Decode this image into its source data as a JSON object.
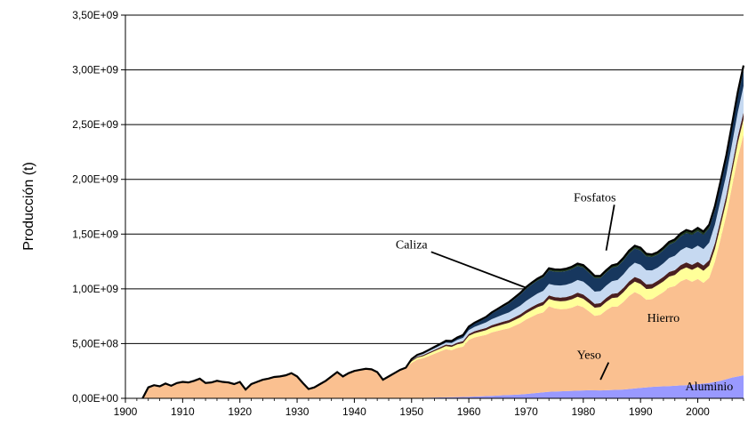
{
  "chart_data": {
    "type": "area",
    "stacked": true,
    "ylabel": "Producción (t)",
    "xlabel": "",
    "xlim": [
      1900,
      2008
    ],
    "ylim": [
      0,
      3500000000
    ],
    "x_ticks": [
      1900,
      1910,
      1920,
      1930,
      1940,
      1950,
      1960,
      1970,
      1980,
      1990,
      2000
    ],
    "y_ticks": [
      "0,00E+00",
      "5,00E+08",
      "1,00E+09",
      "1,50E+09",
      "2,00E+09",
      "2,50E+09",
      "3,00E+09",
      "3,50E+09"
    ],
    "grid": true,
    "x": [
      1903,
      1904,
      1905,
      1906,
      1907,
      1908,
      1909,
      1910,
      1911,
      1912,
      1913,
      1914,
      1915,
      1916,
      1917,
      1918,
      1919,
      1920,
      1921,
      1922,
      1923,
      1924,
      1925,
      1926,
      1927,
      1928,
      1929,
      1930,
      1931,
      1932,
      1933,
      1934,
      1935,
      1936,
      1937,
      1938,
      1939,
      1940,
      1941,
      1942,
      1943,
      1944,
      1945,
      1946,
      1947,
      1948,
      1949,
      1950,
      1951,
      1952,
      1953,
      1954,
      1955,
      1956,
      1957,
      1958,
      1959,
      1960,
      1961,
      1962,
      1963,
      1964,
      1965,
      1966,
      1967,
      1968,
      1969,
      1970,
      1971,
      1972,
      1973,
      1974,
      1975,
      1976,
      1977,
      1978,
      1979,
      1980,
      1981,
      1982,
      1983,
      1984,
      1985,
      1986,
      1987,
      1988,
      1989,
      1990,
      1991,
      1992,
      1993,
      1994,
      1995,
      1996,
      1997,
      1998,
      1999,
      2000,
      2001,
      2002,
      2003,
      2004,
      2005,
      2006,
      2007,
      2008
    ],
    "series": [
      {
        "name": "Aluminio",
        "color": "#9999ff",
        "values": [
          0,
          0,
          0,
          0,
          0,
          0,
          0,
          0,
          0,
          0,
          0,
          0,
          0,
          0,
          0,
          0,
          0,
          0,
          0,
          0,
          0,
          0,
          0,
          0,
          0,
          0,
          0,
          0,
          0,
          0,
          0,
          0,
          0,
          0,
          0,
          0,
          0,
          0,
          0,
          0,
          0,
          0,
          0,
          0,
          0,
          0,
          0,
          3000000,
          4000000,
          5000000,
          6000000,
          7000000,
          8000000,
          9000000,
          10000000,
          11000000,
          12000000,
          14000000,
          16000000,
          18000000,
          20000000,
          22000000,
          25000000,
          28000000,
          30000000,
          33000000,
          36000000,
          40000000,
          45000000,
          50000000,
          55000000,
          60000000,
          62000000,
          64000000,
          66000000,
          68000000,
          70000000,
          72000000,
          74000000,
          73000000,
          72000000,
          74000000,
          76000000,
          78000000,
          80000000,
          85000000,
          90000000,
          95000000,
          100000000,
          105000000,
          108000000,
          110000000,
          112000000,
          115000000,
          118000000,
          120000000,
          125000000,
          130000000,
          135000000,
          140000000,
          150000000,
          160000000,
          175000000,
          190000000,
          200000000,
          210000000
        ]
      },
      {
        "name": "Hierro",
        "color": "#fac090",
        "values": [
          0,
          100000000,
          120000000,
          110000000,
          135000000,
          115000000,
          140000000,
          150000000,
          145000000,
          160000000,
          180000000,
          140000000,
          145000000,
          160000000,
          150000000,
          145000000,
          130000000,
          150000000,
          80000000,
          130000000,
          150000000,
          170000000,
          180000000,
          195000000,
          200000000,
          210000000,
          230000000,
          200000000,
          140000000,
          85000000,
          100000000,
          130000000,
          160000000,
          200000000,
          240000000,
          200000000,
          230000000,
          250000000,
          260000000,
          270000000,
          265000000,
          240000000,
          170000000,
          200000000,
          230000000,
          260000000,
          280000000,
          320000000,
          350000000,
          360000000,
          380000000,
          400000000,
          420000000,
          440000000,
          430000000,
          450000000,
          460000000,
          520000000,
          540000000,
          550000000,
          560000000,
          580000000,
          590000000,
          600000000,
          610000000,
          630000000,
          650000000,
          680000000,
          700000000,
          720000000,
          730000000,
          780000000,
          760000000,
          750000000,
          750000000,
          760000000,
          780000000,
          760000000,
          720000000,
          680000000,
          690000000,
          730000000,
          760000000,
          760000000,
          800000000,
          850000000,
          880000000,
          850000000,
          800000000,
          800000000,
          830000000,
          860000000,
          900000000,
          910000000,
          950000000,
          970000000,
          940000000,
          960000000,
          920000000,
          960000000,
          1100000000,
          1300000000,
          1500000000,
          1750000000,
          2000000000,
          2200000000
        ]
      },
      {
        "name": "Yeso",
        "color": "#ffff99",
        "values": [
          0,
          0,
          0,
          0,
          0,
          0,
          0,
          0,
          0,
          0,
          0,
          0,
          0,
          0,
          0,
          0,
          0,
          0,
          0,
          0,
          0,
          0,
          0,
          0,
          0,
          0,
          0,
          0,
          0,
          0,
          0,
          0,
          0,
          0,
          0,
          0,
          0,
          0,
          0,
          0,
          0,
          0,
          0,
          0,
          0,
          0,
          0,
          15000000,
          18000000,
          20000000,
          22000000,
          24000000,
          26000000,
          28000000,
          30000000,
          32000000,
          34000000,
          36000000,
          38000000,
          40000000,
          42000000,
          44000000,
          46000000,
          48000000,
          50000000,
          52000000,
          54000000,
          56000000,
          60000000,
          62000000,
          66000000,
          68000000,
          70000000,
          72000000,
          74000000,
          76000000,
          78000000,
          78000000,
          76000000,
          74000000,
          72000000,
          76000000,
          80000000,
          84000000,
          88000000,
          92000000,
          96000000,
          100000000,
          100000000,
          98000000,
          96000000,
          98000000,
          100000000,
          102000000,
          104000000,
          106000000,
          108000000,
          110000000,
          110000000,
          112000000,
          115000000,
          120000000,
          125000000,
          130000000,
          135000000,
          140000000
        ]
      },
      {
        "name": "",
        "color": "#4a1f1f",
        "values": [
          0,
          0,
          0,
          0,
          0,
          0,
          0,
          0,
          0,
          0,
          0,
          0,
          0,
          0,
          0,
          0,
          0,
          0,
          0,
          0,
          0,
          0,
          0,
          0,
          0,
          0,
          0,
          0,
          0,
          0,
          0,
          0,
          0,
          0,
          0,
          0,
          0,
          0,
          0,
          0,
          0,
          0,
          0,
          0,
          0,
          0,
          0,
          8000000,
          9000000,
          10000000,
          11000000,
          12000000,
          13000000,
          14000000,
          15000000,
          16000000,
          17000000,
          18000000,
          19000000,
          20000000,
          21000000,
          22000000,
          23000000,
          24000000,
          25000000,
          26000000,
          27000000,
          28000000,
          29000000,
          30000000,
          31000000,
          32000000,
          33000000,
          34000000,
          35000000,
          36000000,
          37000000,
          38000000,
          37000000,
          36000000,
          36000000,
          37000000,
          38000000,
          39000000,
          40000000,
          41000000,
          42000000,
          43000000,
          42000000,
          41000000,
          40000000,
          41000000,
          42000000,
          43000000,
          44000000,
          45000000,
          46000000,
          47000000,
          48000000,
          50000000,
          52000000,
          54000000,
          56000000,
          58000000,
          60000000,
          62000000
        ]
      },
      {
        "name": "Caliza",
        "color": "#c6d9f1",
        "values": [
          0,
          0,
          0,
          0,
          0,
          0,
          0,
          0,
          0,
          0,
          0,
          0,
          0,
          0,
          0,
          0,
          0,
          0,
          0,
          0,
          0,
          0,
          0,
          0,
          0,
          0,
          0,
          0,
          0,
          0,
          0,
          0,
          0,
          0,
          0,
          0,
          0,
          0,
          0,
          0,
          0,
          0,
          0,
          0,
          0,
          0,
          0,
          5000000,
          8000000,
          10000000,
          12000000,
          14000000,
          16000000,
          18000000,
          20000000,
          25000000,
          30000000,
          35000000,
          40000000,
          45000000,
          50000000,
          55000000,
          60000000,
          65000000,
          70000000,
          75000000,
          80000000,
          85000000,
          90000000,
          95000000,
          100000000,
          105000000,
          108000000,
          110000000,
          112000000,
          114000000,
          116000000,
          118000000,
          116000000,
          112000000,
          110000000,
          112000000,
          116000000,
          120000000,
          124000000,
          128000000,
          130000000,
          132000000,
          128000000,
          124000000,
          120000000,
          124000000,
          128000000,
          132000000,
          136000000,
          140000000,
          144000000,
          148000000,
          150000000,
          160000000,
          170000000,
          180000000,
          190000000,
          200000000,
          220000000,
          240000000
        ]
      },
      {
        "name": "Fosfatos",
        "color": "#17375e",
        "values": [
          0,
          0,
          0,
          0,
          0,
          0,
          0,
          0,
          0,
          0,
          0,
          0,
          0,
          0,
          0,
          0,
          0,
          0,
          0,
          0,
          0,
          0,
          0,
          0,
          0,
          0,
          0,
          0,
          0,
          0,
          0,
          0,
          0,
          0,
          0,
          0,
          0,
          0,
          0,
          0,
          0,
          0,
          0,
          0,
          0,
          0,
          0,
          5000000,
          6000000,
          7000000,
          8000000,
          9000000,
          10000000,
          12000000,
          14000000,
          16000000,
          20000000,
          25000000,
          30000000,
          35000000,
          40000000,
          50000000,
          60000000,
          70000000,
          80000000,
          90000000,
          100000000,
          110000000,
          115000000,
          118000000,
          120000000,
          122000000,
          123000000,
          124000000,
          125000000,
          126000000,
          127000000,
          128000000,
          125000000,
          122000000,
          118000000,
          120000000,
          122000000,
          124000000,
          126000000,
          128000000,
          130000000,
          130000000,
          126000000,
          122000000,
          118000000,
          120000000,
          122000000,
          124000000,
          126000000,
          128000000,
          130000000,
          132000000,
          130000000,
          132000000,
          134000000,
          136000000,
          138000000,
          140000000,
          142000000,
          144000000
        ]
      },
      {
        "name": "",
        "color": "#1f3a1f",
        "values": [
          0,
          0,
          0,
          0,
          0,
          0,
          0,
          0,
          0,
          0,
          0,
          0,
          0,
          0,
          0,
          0,
          0,
          0,
          0,
          0,
          0,
          0,
          0,
          0,
          0,
          0,
          0,
          0,
          0,
          0,
          0,
          0,
          0,
          0,
          0,
          0,
          0,
          0,
          0,
          0,
          0,
          0,
          0,
          0,
          0,
          0,
          0,
          2000000,
          2000000,
          3000000,
          3000000,
          4000000,
          4000000,
          5000000,
          5000000,
          6000000,
          6000000,
          7000000,
          8000000,
          9000000,
          10000000,
          11000000,
          12000000,
          13000000,
          14000000,
          15000000,
          16000000,
          17000000,
          18000000,
          19000000,
          20000000,
          21000000,
          22000000,
          22000000,
          22000000,
          22000000,
          23000000,
          23000000,
          22000000,
          21000000,
          20000000,
          21000000,
          22000000,
          23000000,
          24000000,
          25000000,
          26000000,
          26000000,
          25000000,
          24000000,
          23000000,
          24000000,
          25000000,
          26000000,
          27000000,
          28000000,
          29000000,
          30000000,
          30000000,
          32000000,
          34000000,
          36000000,
          38000000,
          40000000,
          42000000,
          44000000
        ]
      }
    ],
    "annotations": [
      {
        "text": "Fosfatos",
        "x": 1982,
        "y": 1800000000,
        "target_x": 1984,
        "target_y": 1350000000
      },
      {
        "text": "Caliza",
        "x": 1950,
        "y": 1370000000,
        "target_x": 1970,
        "target_y": 1010000000
      },
      {
        "text": "Hierro",
        "x": 1994,
        "y": 700000000
      },
      {
        "text": "Yeso",
        "x": 1981,
        "y": 360000000,
        "target_x": 1983,
        "target_y": 170000000
      },
      {
        "text": "Aluminio",
        "x": 2002,
        "y": 75000000
      }
    ]
  }
}
